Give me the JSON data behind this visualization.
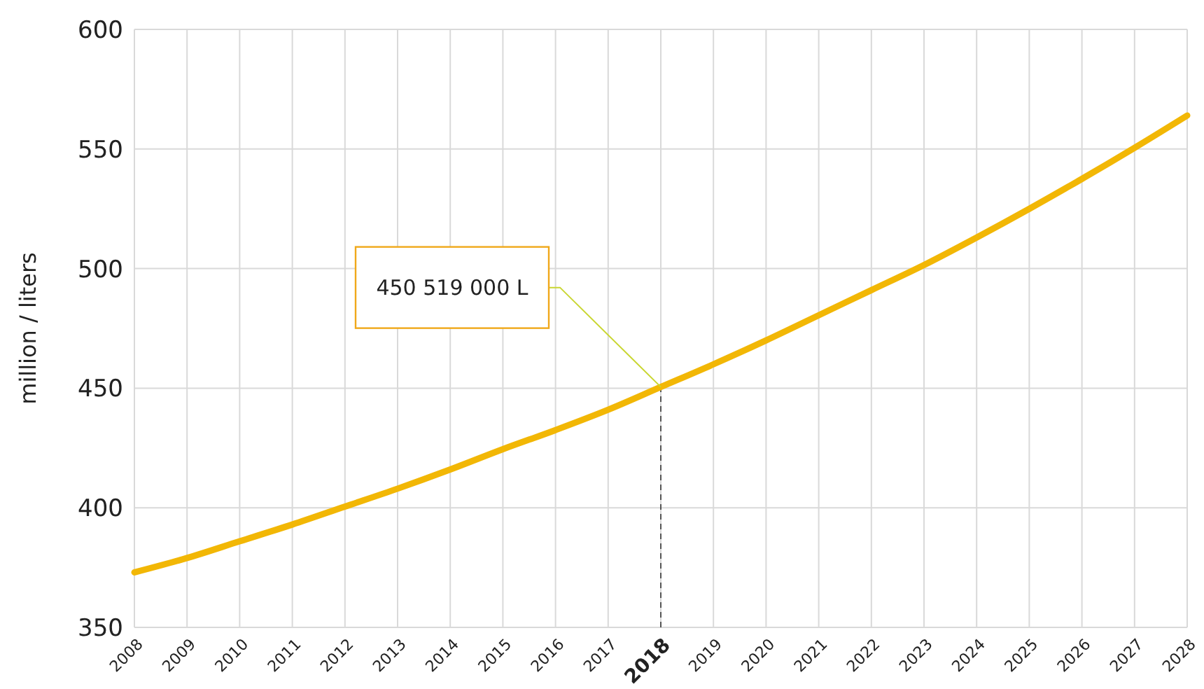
{
  "chart_data": {
    "type": "line",
    "ylabel": "million / liters",
    "x": [
      2008,
      2009,
      2010,
      2011,
      2012,
      2013,
      2014,
      2015,
      2016,
      2017,
      2018,
      2019,
      2020,
      2021,
      2022,
      2023,
      2024,
      2025,
      2026,
      2027,
      2028
    ],
    "series": [
      {
        "color": "#f2b705",
        "values": [
          373,
          379,
          386,
          393,
          400.5,
          408,
          416,
          424.5,
          432.5,
          441,
          450.5,
          460,
          470,
          480.5,
          491,
          501.5,
          513,
          525,
          537.5,
          550.5,
          564
        ]
      }
    ],
    "xlim": [
      2008,
      2028
    ],
    "xticks": [
      2008,
      2009,
      2010,
      2011,
      2012,
      2013,
      2014,
      2015,
      2016,
      2017,
      2018,
      2019,
      2020,
      2021,
      2022,
      2023,
      2024,
      2025,
      2026,
      2027,
      2028
    ],
    "ylim": [
      350,
      600
    ],
    "yticks": [
      350,
      400,
      450,
      500,
      550,
      600
    ],
    "ref_lines": [
      {
        "axis": "x",
        "value": 2018,
        "color": "#555555",
        "line_style": "dashed"
      }
    ],
    "annotations": [
      {
        "text": "450 519 000 L",
        "x": 2018,
        "y": 450.519
      }
    ],
    "grid": true,
    "marker": "none",
    "line_style": "solid"
  }
}
